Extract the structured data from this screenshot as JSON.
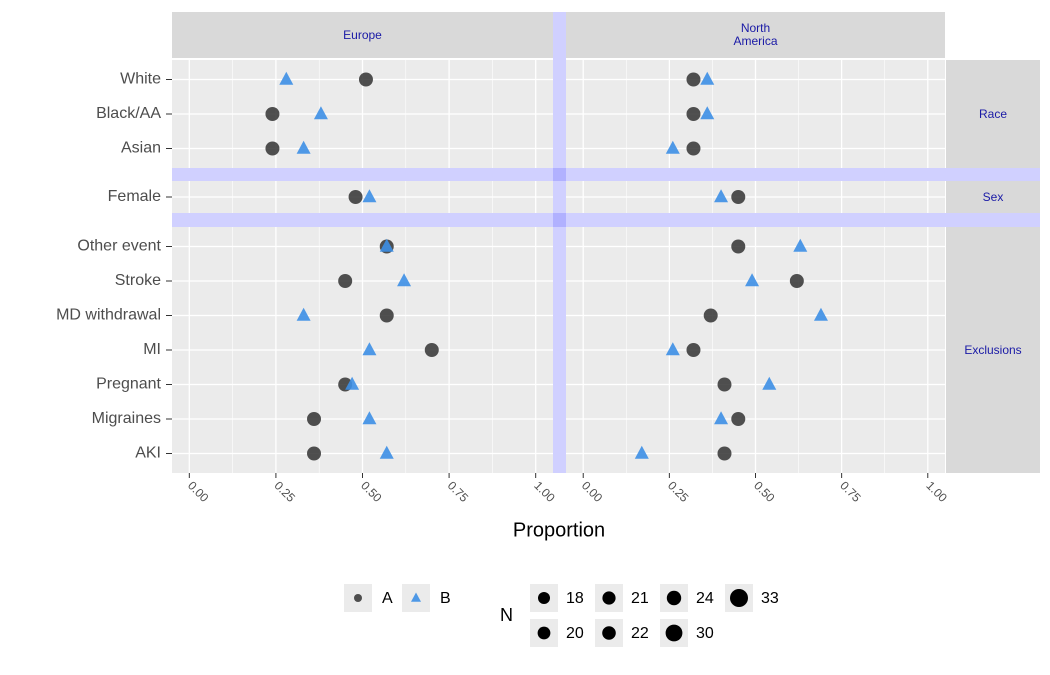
{
  "chart_data": {
    "type": "dot",
    "x_label": "Proportion",
    "xlim": [
      -0.05,
      1.05
    ],
    "xticks": [
      {
        "value": 0,
        "label": "0.00"
      },
      {
        "value": 0.25,
        "label": "0.25"
      },
      {
        "value": 0.5,
        "label": "0.50"
      },
      {
        "value": 0.75,
        "label": "0.75"
      },
      {
        "value": 1,
        "label": "1.00"
      }
    ],
    "grid": true,
    "column_facets": [
      "Europe",
      "North America"
    ],
    "row_facets": [
      {
        "label": "Race",
        "categories": [
          "White",
          "Black/AA",
          "Asian"
        ]
      },
      {
        "label": "Sex",
        "categories": [
          "Female"
        ]
      },
      {
        "label": "Exclusions",
        "categories": [
          "Other event",
          "Stroke",
          "MD withdrawal",
          "MI",
          "Pregnant",
          "Migraines",
          "AKI"
        ]
      }
    ],
    "series": [
      {
        "name": "A",
        "shape": "circle",
        "color": "#333333",
        "values": [
          [
            0.51,
            0.24,
            0.24,
            0.48,
            0.57,
            0.45,
            0.57,
            0.7,
            0.45,
            0.36,
            0.36
          ],
          [
            0.32,
            0.32,
            0.32,
            0.45,
            0.45,
            0.62,
            0.37,
            0.32,
            0.41,
            0.45,
            0.41
          ]
        ]
      },
      {
        "name": "B",
        "shape": "triangle",
        "color": "#3d8fe6",
        "values": [
          [
            0.28,
            0.38,
            0.33,
            0.52,
            0.57,
            0.62,
            0.33,
            0.52,
            0.47,
            0.52,
            0.57
          ],
          [
            0.36,
            0.36,
            0.26,
            0.4,
            0.63,
            0.49,
            0.69,
            0.26,
            0.54,
            0.4,
            0.17
          ]
        ]
      }
    ],
    "size_legend": {
      "title": "N",
      "values": [
        18,
        20,
        21,
        22,
        24,
        30,
        33
      ]
    }
  }
}
